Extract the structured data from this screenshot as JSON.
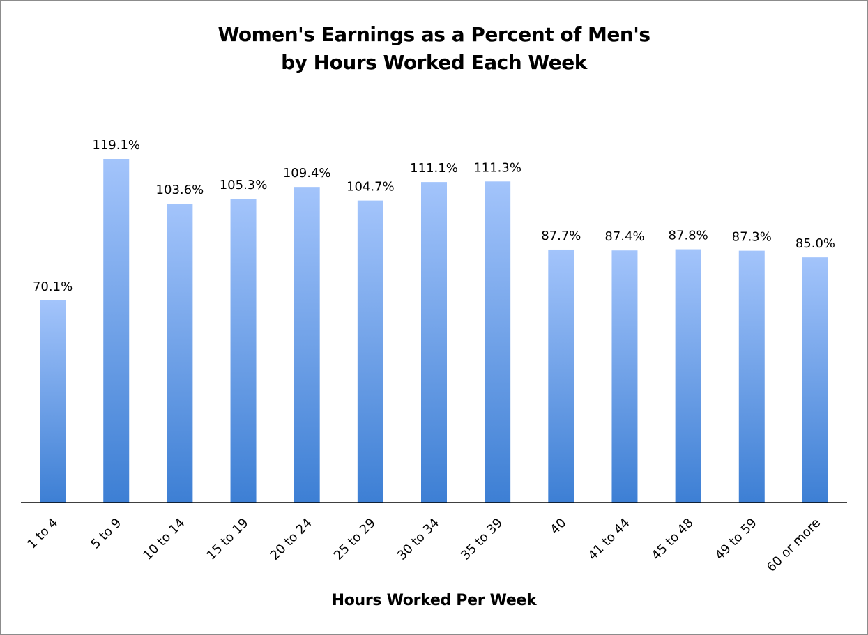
{
  "chart_data": {
    "type": "bar",
    "title": [
      "Women's Earnings as a Percent of Men's",
      "by Hours Worked Each Week"
    ],
    "xlabel": "Hours Worked Per Week",
    "ylabel": "",
    "categories": [
      "1 to 4",
      "5 to 9",
      "10 to 14",
      "15 to 19",
      "20 to 24",
      "25 to 29",
      "30 to 34",
      "35 to 39",
      "40",
      "41 to 44",
      "45 to 48",
      "49 to 59",
      "60 or more"
    ],
    "values": [
      70.1,
      119.1,
      103.6,
      105.3,
      109.4,
      104.7,
      111.1,
      111.3,
      87.7,
      87.4,
      87.8,
      87.3,
      85.0
    ],
    "value_labels": [
      "70.1%",
      "119.1%",
      "103.6%",
      "105.3%",
      "109.4%",
      "104.7%",
      "111.1%",
      "111.3%",
      "87.7%",
      "87.4%",
      "87.8%",
      "87.3%",
      "85.0%"
    ],
    "ylim": [
      0,
      119.1
    ],
    "grid": false,
    "legend": "none",
    "colors": {
      "bar_top": "#a3c4fb",
      "bar_bottom": "#3d7fd4",
      "axis": "#000000",
      "border": "#8c8c8c"
    }
  }
}
